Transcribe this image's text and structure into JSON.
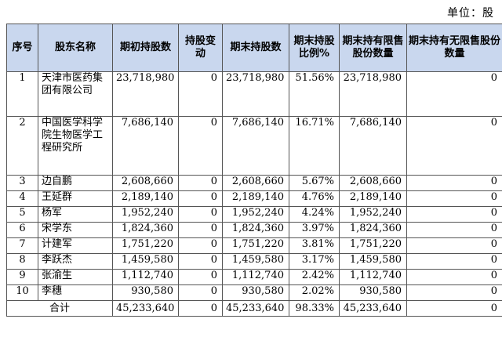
{
  "unit_label": "单位：股",
  "headers": [
    "序号",
    "股东名称",
    "期初持股数",
    "持股变动",
    "期末持股数",
    "期末持股比例%",
    "期末持有限售股份数量",
    "期末持有无限售股份数量"
  ],
  "rows": [
    {
      "no": "1",
      "name": "天津市医药集团有限公司",
      "start": "23,718,980",
      "change": "0",
      "end": "23,718,980",
      "pct": "51.56%",
      "restricted": "23,718,980",
      "unrestricted": "0"
    },
    {
      "no": "2",
      "name": "中国医学科学院生物医学工程研究所",
      "start": "7,686,140",
      "change": "0",
      "end": "7,686,140",
      "pct": "16.71%",
      "restricted": "7,686,140",
      "unrestricted": "0"
    },
    {
      "no": "3",
      "name": "边自鹏",
      "start": "2,608,660",
      "change": "0",
      "end": "2,608,660",
      "pct": "5.67%",
      "restricted": "2,608,660",
      "unrestricted": "0"
    },
    {
      "no": "4",
      "name": "王延群",
      "start": "2,189,140",
      "change": "0",
      "end": "2,189,140",
      "pct": "4.76%",
      "restricted": "2,189,140",
      "unrestricted": "0"
    },
    {
      "no": "5",
      "name": "杨军",
      "start": "1,952,240",
      "change": "0",
      "end": "1,952,240",
      "pct": "4.24%",
      "restricted": "1,952,240",
      "unrestricted": "0"
    },
    {
      "no": "6",
      "name": "宋学东",
      "start": "1,824,360",
      "change": "0",
      "end": "1,824,360",
      "pct": "3.97%",
      "restricted": "1,824,360",
      "unrestricted": "0"
    },
    {
      "no": "7",
      "name": "计建军",
      "start": "1,751,220",
      "change": "0",
      "end": "1,751,220",
      "pct": "3.81%",
      "restricted": "1,751,220",
      "unrestricted": "0"
    },
    {
      "no": "8",
      "name": "李跃杰",
      "start": "1,459,580",
      "change": "0",
      "end": "1,459,580",
      "pct": "3.17%",
      "restricted": "1,459,580",
      "unrestricted": "0"
    },
    {
      "no": "9",
      "name": "张渝生",
      "start": "1,112,740",
      "change": "0",
      "end": "1,112,740",
      "pct": "2.42%",
      "restricted": "1,112,740",
      "unrestricted": "0"
    },
    {
      "no": "10",
      "name": "李穗",
      "start": "930,580",
      "change": "0",
      "end": "930,580",
      "pct": "2.02%",
      "restricted": "930,580",
      "unrestricted": "0"
    }
  ],
  "total": {
    "label": "合计",
    "start": "45,233,640",
    "change": "0",
    "end": "45,233,640",
    "pct": "98.33%",
    "restricted": "45,233,640",
    "unrestricted": "0"
  }
}
